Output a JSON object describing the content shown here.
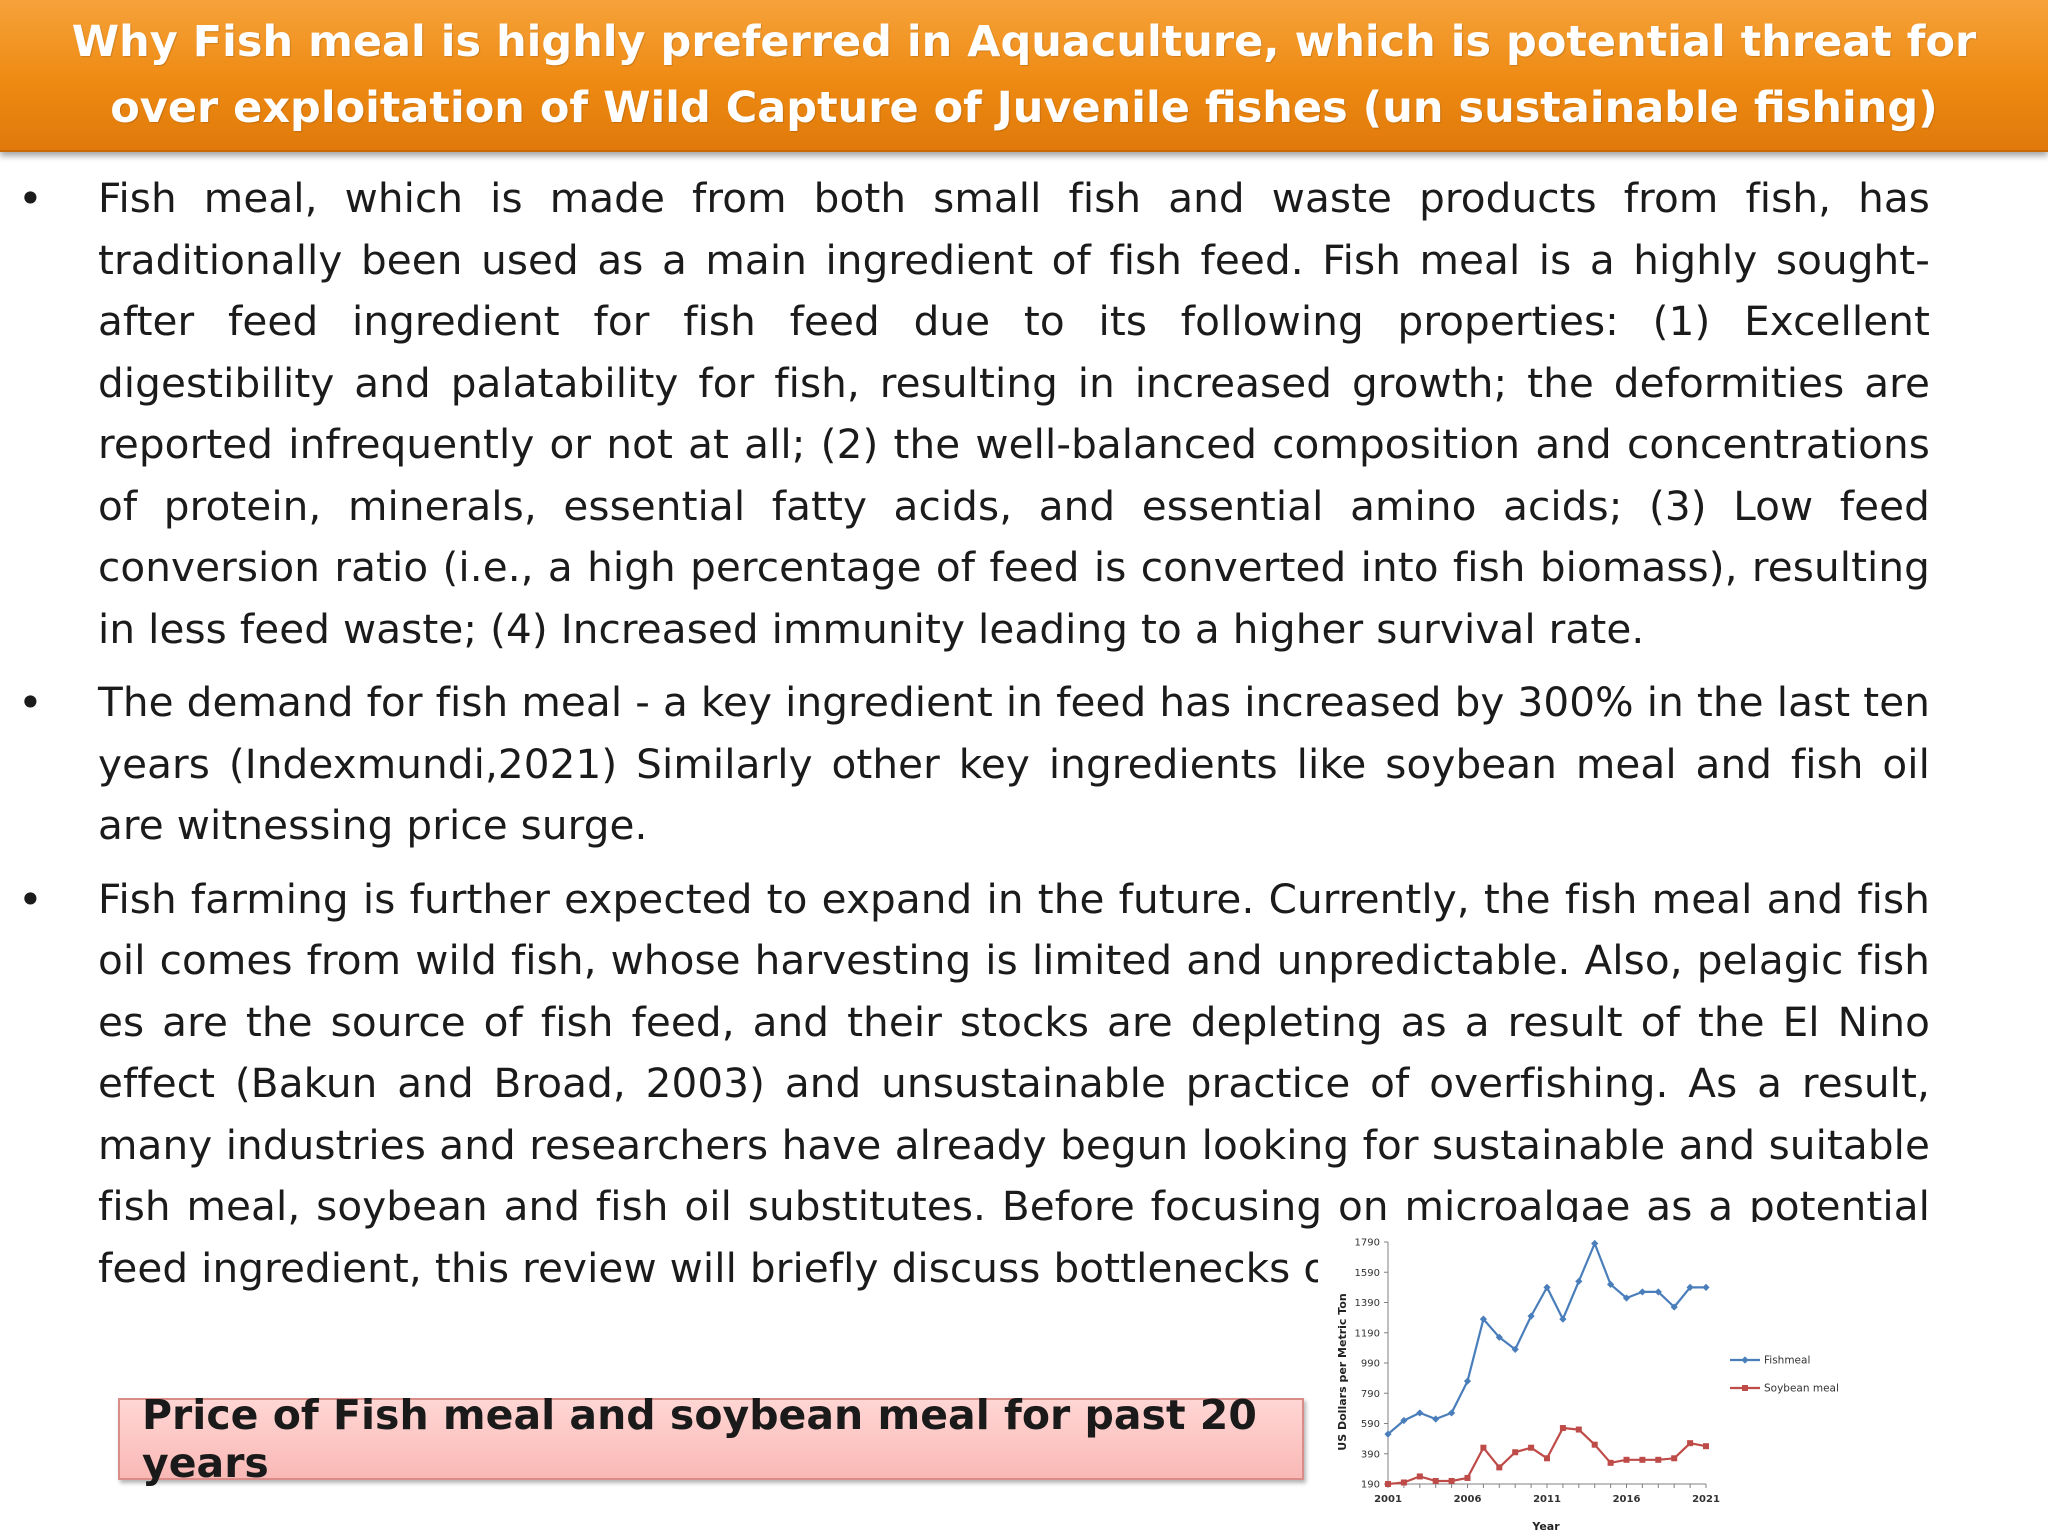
{
  "slide": {
    "title": "Why Fish meal is highly preferred in Aquaculture, which is potential threat for over exploitation of Wild Capture of Juvenile fishes (un sustainable fishing)",
    "bullets": [
      "Fish meal, which is made from both small fish and waste products from fish, has traditionally been used as a main ingredient of fish feed. Fish meal is a highly sought-after feed ingredient for fish feed due to its following properties: (1) Excellent digestibility and palatability for fish, resulting in increased growth; the deformities are reported infrequently or not at all; (2) the well-balanced composition and concentrations of protein, minerals, essential fatty acids, and essential amino acids; (3) Low feed conversion ratio (i.e., a high percentage of feed is converted into fish biomass), resulting in less feed waste; (4) Increased immunity leading to a higher survival rate.",
      "The demand for fish meal - a key ingredient in feed has increased by 300% in the last ten years (Indexmundi,2021) Similarly other key ingredients like soybean meal and fish oil are witnessing price surge.",
      "Fish farming is further expected to expand in the future. Currently, the fish meal and fish oil comes from wild fish, whose harvesting is limited and unpredictable. Also, pelagic fish es are the source of fish feed, and their stocks are depleting as a result of the El Nino effect (Bakun and Broad, 2003) and unsustainable practice of overfishing. As a result, many industries and researchers have already begun looking for sustainable and suitable fish meal, soybean and fish oil substitutes. Before focusing on microalgae as a potential feed ingredient, this review will briefly discuss bottlenecks of alternative ingredients fo"
    ],
    "bullet_symbol": "•",
    "caption": "Price of Fish meal and soybean meal for past 20 years",
    "colors": {
      "banner_top": "#f6a23a",
      "banner_bottom": "#e0790a",
      "caption_bg": "#f9b9b6",
      "fishmeal_series": "#4a7ebb",
      "soybean_series": "#be4b48"
    }
  },
  "chart_data": {
    "type": "line",
    "xlabel": "Year",
    "ylabel": "US Dollars per Metric Ton",
    "xlim": [
      2001,
      2021
    ],
    "ylim": [
      190,
      1790
    ],
    "xticks": [
      "2001",
      "2006",
      "2011",
      "2016",
      "2021"
    ],
    "yticks": [
      "190",
      "390",
      "590",
      "790",
      "990",
      "1190",
      "1390",
      "1590",
      "1790"
    ],
    "legend_position": "right",
    "series": [
      {
        "name": "Fishmeal",
        "color": "#4a7ebb",
        "marker": "diamond",
        "x": [
          2001,
          2002,
          2003,
          2004,
          2005,
          2006,
          2007,
          2008,
          2009,
          2010,
          2011,
          2012,
          2013,
          2014,
          2015,
          2016,
          2017,
          2018,
          2019,
          2020,
          2021
        ],
        "values": [
          520,
          610,
          660,
          620,
          660,
          870,
          1280,
          1160,
          1080,
          1300,
          1490,
          1280,
          1530,
          1780,
          1510,
          1420,
          1460,
          1460,
          1360,
          1490,
          1490
        ]
      },
      {
        "name": "Soybean meal",
        "color": "#be4b48",
        "marker": "square",
        "x": [
          2001,
          2002,
          2003,
          2004,
          2005,
          2006,
          2007,
          2008,
          2009,
          2010,
          2011,
          2012,
          2013,
          2014,
          2015,
          2016,
          2017,
          2018,
          2019,
          2020,
          2021
        ],
        "values": [
          190,
          200,
          240,
          210,
          210,
          230,
          430,
          300,
          400,
          430,
          360,
          560,
          550,
          450,
          330,
          350,
          350,
          350,
          360,
          460,
          440
        ]
      }
    ]
  }
}
